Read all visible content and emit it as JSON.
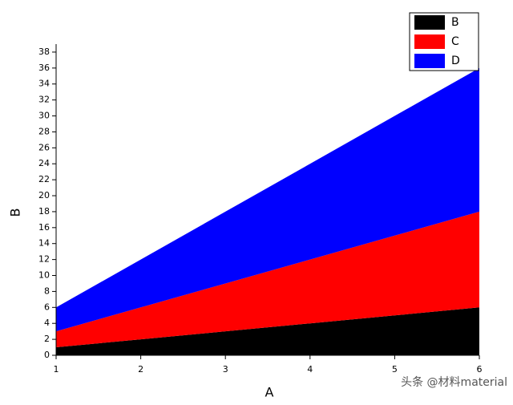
{
  "chart_data": {
    "type": "stacked-area",
    "x_label": "A",
    "y_label": "B",
    "x": [
      1,
      2,
      3,
      4,
      5,
      6
    ],
    "series": [
      {
        "name": "B",
        "color": "#000000",
        "values": [
          1,
          2,
          3,
          4,
          5,
          6
        ]
      },
      {
        "name": "C",
        "color": "#ff0000",
        "values": [
          2,
          4,
          6,
          8,
          10,
          12
        ]
      },
      {
        "name": "D",
        "color": "#0000ff",
        "values": [
          3,
          6,
          9,
          12,
          15,
          18
        ]
      }
    ],
    "xlim": [
      1,
      6
    ],
    "xticks": [
      1,
      2,
      3,
      4,
      5,
      6
    ],
    "ylim": [
      0,
      39
    ],
    "yticks": [
      0,
      2,
      4,
      6,
      8,
      10,
      12,
      14,
      16,
      18,
      20,
      22,
      24,
      26,
      28,
      30,
      32,
      34,
      36,
      38
    ],
    "legend": "top-right",
    "watermark": "头条 @材料material"
  }
}
